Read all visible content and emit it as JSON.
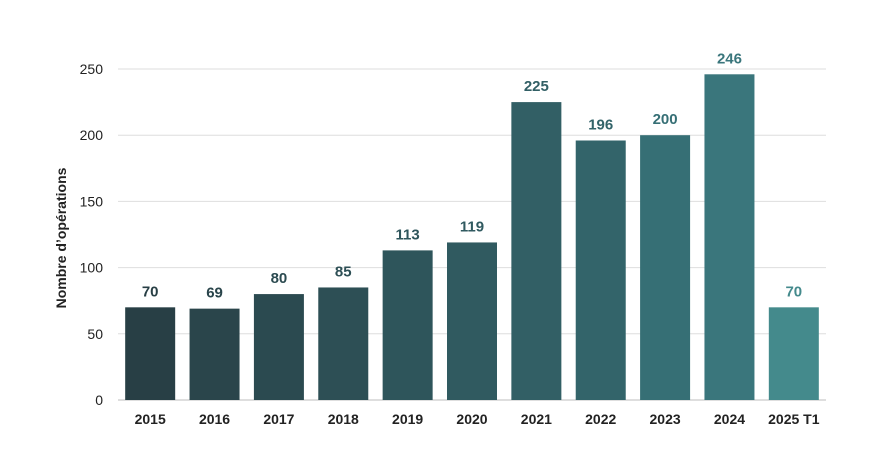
{
  "chart_data": {
    "type": "bar",
    "ylabel": "Nombre d’opérations",
    "xlabel": "",
    "categories": [
      "2015",
      "2016",
      "2017",
      "2018",
      "2019",
      "2020",
      "2021",
      "2022",
      "2023",
      "2024",
      "2025 T1"
    ],
    "values": [
      70,
      69,
      80,
      85,
      113,
      119,
      225,
      196,
      200,
      246,
      70
    ],
    "ylim": [
      0,
      250
    ],
    "yticks": [
      0,
      50,
      100,
      150,
      200,
      250
    ],
    "grid": true,
    "colors": [
      "#283f45",
      "#2a454b",
      "#2b4a50",
      "#2d4f55",
      "#2e555b",
      "#305a60",
      "#325f65",
      "#33646a",
      "#366f75",
      "#3a767c",
      "#448a8c"
    ],
    "label_colors": [
      "#283f45",
      "#2a454b",
      "#2b4a50",
      "#2d4f55",
      "#2e555b",
      "#305a60",
      "#325f65",
      "#33646a",
      "#366f75",
      "#3a767c",
      "#448a8c"
    ]
  }
}
